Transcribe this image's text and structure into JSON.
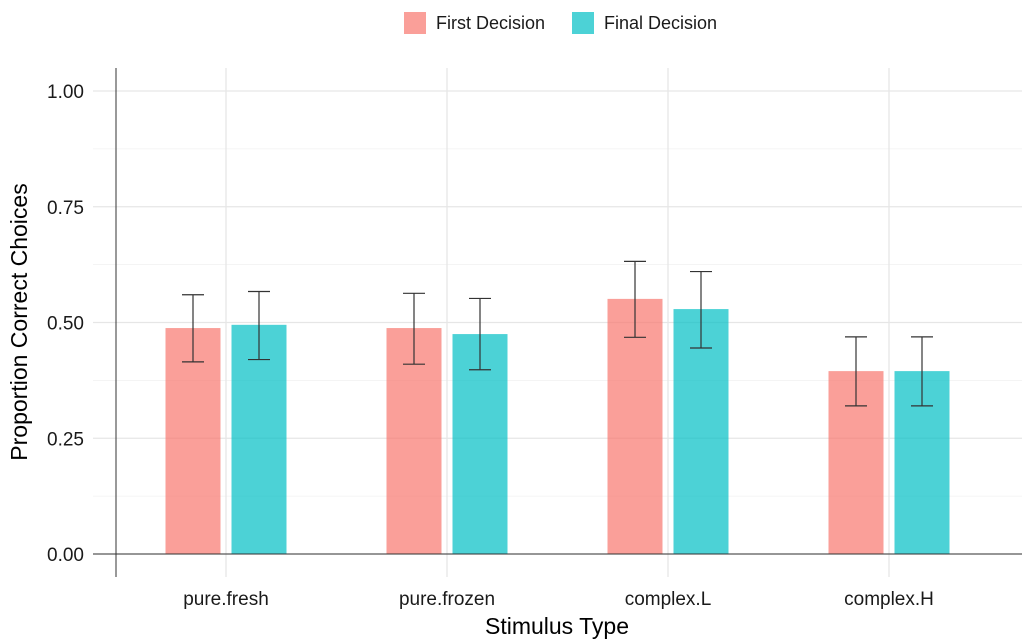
{
  "chart_data": {
    "type": "bar",
    "title": "",
    "xlabel": "Stimulus Type",
    "ylabel": "Proportion Correct Choices",
    "ylim": [
      0,
      1.05
    ],
    "yticks": [
      0,
      0.25,
      0.5,
      0.75,
      1.0
    ],
    "ytick_labels": [
      "0.00",
      "0.25",
      "0.50",
      "0.75",
      "1.00"
    ],
    "categories": [
      "pure.fresh",
      "pure.frozen",
      "complex.L",
      "complex.H"
    ],
    "series": [
      {
        "name": "First Decision",
        "color": "#F8766D",
        "values": [
          0.488,
          0.488,
          0.551,
          0.395
        ],
        "error_low": [
          0.415,
          0.41,
          0.468,
          0.32
        ],
        "error_high": [
          0.56,
          0.563,
          0.632,
          0.469
        ]
      },
      {
        "name": "Final Decision",
        "color": "#00BFC4",
        "values": [
          0.495,
          0.475,
          0.529,
          0.395
        ],
        "error_low": [
          0.42,
          0.398,
          0.445,
          0.32
        ],
        "error_high": [
          0.567,
          0.552,
          0.61,
          0.469
        ]
      }
    ],
    "legend": {
      "position": "top"
    },
    "grid": true
  }
}
